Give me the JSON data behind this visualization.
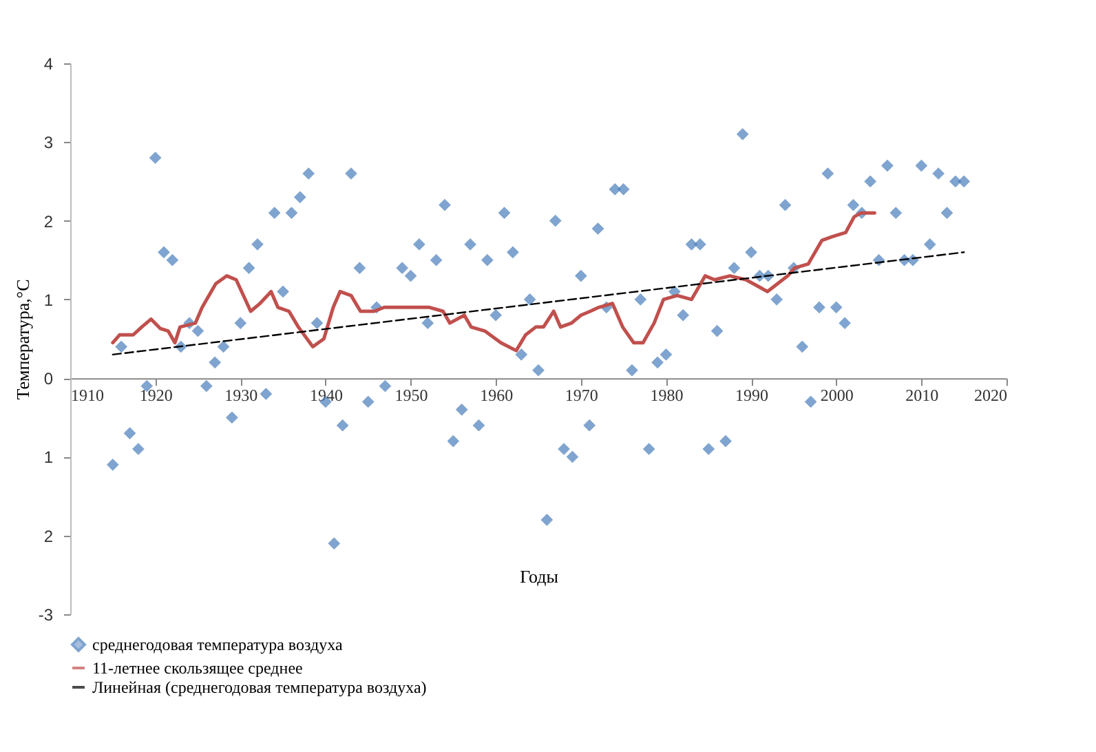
{
  "chart_data": {
    "type": "scatter",
    "xlabel": "Годы",
    "ylabel": "Температура,°С",
    "xlim": [
      1910,
      2020
    ],
    "xticks": [
      1910,
      1920,
      1930,
      1940,
      1950,
      1960,
      1970,
      1980,
      1990,
      2000,
      2010,
      2020
    ],
    "ylim": [
      -3,
      4
    ],
    "yticks": [
      4,
      3,
      2,
      1,
      0,
      {
        "value": -1,
        "label": "1"
      },
      {
        "value": -2,
        "label": "2"
      },
      -3
    ],
    "legend": "bottom",
    "series": [
      {
        "name": "среднегодовая температура  воздуха",
        "marker": "diamond",
        "color": "#4a7ebb",
        "x": [
          1915,
          1916,
          1917,
          1918,
          1919,
          1920,
          1921,
          1922,
          1923,
          1924,
          1925,
          1926,
          1927,
          1928,
          1929,
          1930,
          1931,
          1932,
          1933,
          1934,
          1935,
          1936,
          1937,
          1938,
          1939,
          1940,
          1941,
          1942,
          1943,
          1944,
          1945,
          1946,
          1947,
          1949,
          1950,
          1951,
          1952,
          1953,
          1954,
          1955,
          1956,
          1957,
          1958,
          1959,
          1960,
          1961,
          1962,
          1963,
          1964,
          1965,
          1966,
          1967,
          1968,
          1969,
          1970,
          1971,
          1972,
          1973,
          1974,
          1975,
          1976,
          1977,
          1978,
          1979,
          1980,
          1981,
          1982,
          1983,
          1984,
          1985,
          1986,
          1987,
          1988,
          1989,
          1990,
          1991,
          1992,
          1993,
          1994,
          1995,
          1996,
          1997,
          1998,
          1999,
          2000,
          2001,
          2002,
          2003,
          2004,
          2005,
          2006,
          2007,
          2008,
          2009,
          2010,
          2011,
          2012,
          2013,
          2014,
          2015
        ],
        "values": [
          -1.1,
          0.4,
          -0.7,
          -0.9,
          -0.1,
          2.8,
          1.6,
          1.5,
          0.4,
          0.7,
          0.6,
          -0.1,
          0.2,
          0.4,
          -0.5,
          0.7,
          1.4,
          1.7,
          -0.2,
          2.1,
          1.1,
          2.1,
          2.3,
          2.6,
          0.7,
          -0.3,
          -2.1,
          -0.6,
          2.6,
          1.4,
          -0.3,
          0.9,
          -0.1,
          1.4,
          1.3,
          1.7,
          0.7,
          1.5,
          2.2,
          -0.8,
          -0.4,
          1.7,
          -0.6,
          1.5,
          0.8,
          2.1,
          1.6,
          0.3,
          1.0,
          0.1,
          -1.8,
          2.0,
          -0.9,
          -1.0,
          1.3,
          -0.6,
          1.9,
          0.9,
          2.4,
          2.4,
          0.1,
          1.0,
          -0.9,
          0.2,
          0.3,
          1.1,
          0.8,
          1.7,
          1.7,
          -0.9,
          0.6,
          -0.8,
          1.4,
          3.1,
          1.6,
          1.3,
          1.3,
          1.0,
          2.2,
          1.4,
          0.4,
          -0.3,
          0.9,
          2.6,
          0.9,
          0.7,
          2.2,
          2.1,
          2.5,
          1.5,
          2.7,
          2.1,
          1.5,
          1.5,
          2.7,
          1.7,
          2.6,
          2.1,
          2.5,
          2.5
        ]
      },
      {
        "name": "11-летнее скользящее среднее",
        "type": "line",
        "color": "#c0504d",
        "x": [
          1915,
          1915.8,
          1917.4,
          1918.4,
          1919.5,
          1920.6,
          1921.5,
          1922.3,
          1922.9,
          1924.7,
          1925.5,
          1927.1,
          1928.4,
          1929.5,
          1931.2,
          1932.3,
          1933.6,
          1934.4,
          1935.7,
          1936.8,
          1938.5,
          1939.8,
          1940.9,
          1941.7,
          1943,
          1944.1,
          1945.7,
          1946.9,
          1948.2,
          1949.8,
          1952.2,
          1953.8,
          1954.6,
          1956.3,
          1957.1,
          1958.7,
          1960.6,
          1962.4,
          1963.5,
          1964.7,
          1965.6,
          1966.8,
          1967.6,
          1968.9,
          1970,
          1971.1,
          1972.1,
          1973.7,
          1974.9,
          1976.2,
          1977.3,
          1978.6,
          1979.7,
          1981.3,
          1983,
          1984.6,
          1985.7,
          1987.5,
          1989.4,
          1991.1,
          1991.9,
          1994.3,
          1995.1,
          1996.7,
          1998.3,
          1999.6,
          2001.1,
          2002.1,
          2002.9,
          2004.5
        ],
        "values": [
          0.45,
          0.55,
          0.55,
          0.65,
          0.75,
          0.63,
          0.6,
          0.45,
          0.65,
          0.7,
          0.9,
          1.2,
          1.3,
          1.25,
          0.85,
          0.95,
          1.1,
          0.9,
          0.85,
          0.65,
          0.4,
          0.5,
          0.9,
          1.1,
          1.05,
          0.85,
          0.85,
          0.9,
          0.9,
          0.9,
          0.9,
          0.85,
          0.7,
          0.8,
          0.65,
          0.6,
          0.45,
          0.35,
          0.55,
          0.65,
          0.65,
          0.85,
          0.65,
          0.7,
          0.8,
          0.85,
          0.9,
          0.95,
          0.65,
          0.45,
          0.45,
          0.7,
          1.0,
          1.05,
          1.0,
          1.3,
          1.25,
          1.3,
          1.25,
          1.15,
          1.1,
          1.3,
          1.4,
          1.45,
          1.75,
          1.8,
          1.85,
          2.05,
          2.1,
          2.1
        ]
      },
      {
        "name": "Линейная (среднегодовая температура  воздуха)",
        "type": "line",
        "line_style": "dashed",
        "color": "#000000",
        "x": [
          1915,
          2015
        ],
        "values": [
          0.3,
          1.6
        ]
      }
    ]
  }
}
